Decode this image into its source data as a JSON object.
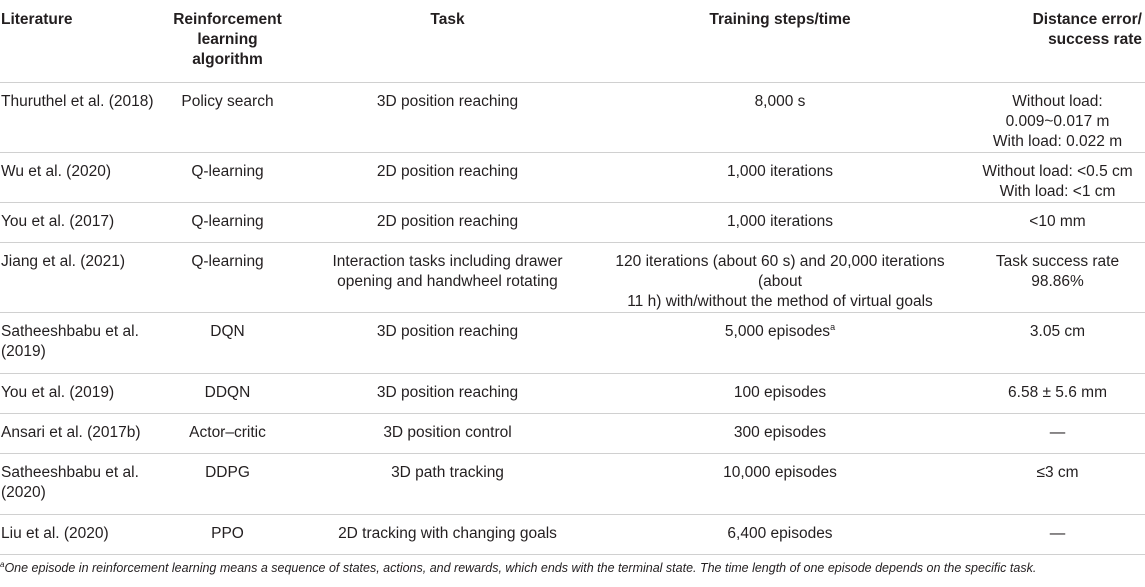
{
  "table": {
    "headers": [
      "Literature",
      "Reinforcement learning algorithm",
      "Task",
      "Training steps/time",
      "Distance error/ success rate"
    ],
    "header_lines": [
      [
        "Literature"
      ],
      [
        "Reinforcement",
        "learning",
        "algorithm"
      ],
      [
        "Task"
      ],
      [
        "Training steps/time"
      ],
      [
        "Distance error/",
        "success rate"
      ]
    ],
    "rows": [
      {
        "literature": [
          "Thuruthel et al. (2018)"
        ],
        "algorithm": "Policy search",
        "task": [
          "3D position reaching"
        ],
        "training": [
          "8,000 s"
        ],
        "training_sup": "",
        "error": [
          "Without load:",
          "0.009~0.017 m",
          "With load: 0.022 m"
        ]
      },
      {
        "literature": [
          "Wu et al. (2020)"
        ],
        "algorithm": "Q-learning",
        "task": [
          "2D position reaching"
        ],
        "training": [
          "1,000 iterations"
        ],
        "training_sup": "",
        "error": [
          "Without load: <0.5 cm",
          "With load: <1 cm"
        ]
      },
      {
        "literature": [
          "You et al. (2017)"
        ],
        "algorithm": "Q-learning",
        "task": [
          "2D position reaching"
        ],
        "training": [
          "1,000 iterations"
        ],
        "training_sup": "",
        "error": [
          "<10 mm"
        ]
      },
      {
        "literature": [
          "Jiang et al. (2021)"
        ],
        "algorithm": "Q-learning",
        "task": [
          "Interaction tasks including drawer",
          "opening and handwheel rotating"
        ],
        "training": [
          "120 iterations (about 60 s) and 20,000 iterations (about",
          "11 h) with/without the method of virtual goals"
        ],
        "training_sup": "",
        "error": [
          "Task success rate",
          "98.86%"
        ]
      },
      {
        "literature": [
          "Satheeshbabu et al.",
          "(2019)"
        ],
        "algorithm": "DQN",
        "task": [
          "3D position reaching"
        ],
        "training": [
          "5,000 episodes"
        ],
        "training_sup": "a",
        "error": [
          "3.05 cm"
        ]
      },
      {
        "literature": [
          "You et al. (2019)"
        ],
        "algorithm": "DDQN",
        "task": [
          "3D position reaching"
        ],
        "training": [
          "100 episodes"
        ],
        "training_sup": "",
        "error": [
          "6.58 ± 5.6 mm"
        ]
      },
      {
        "literature": [
          "Ansari et al. (2017b)"
        ],
        "algorithm": "Actor–critic",
        "task": [
          "3D position control"
        ],
        "training": [
          "300 episodes"
        ],
        "training_sup": "",
        "error": [
          "—"
        ]
      },
      {
        "literature": [
          "Satheeshbabu et al.",
          "(2020)"
        ],
        "algorithm": "DDPG",
        "task": [
          "3D path tracking"
        ],
        "training": [
          "10,000 episodes"
        ],
        "training_sup": "",
        "error": [
          "≤3 cm"
        ]
      },
      {
        "literature": [
          "Liu et al. (2020)"
        ],
        "algorithm": "PPO",
        "task": [
          "2D tracking with changing goals"
        ],
        "training": [
          "6,400 episodes"
        ],
        "training_sup": "",
        "error": [
          "—"
        ]
      }
    ],
    "row_heights": [
      82,
      61,
      40,
      40,
      61,
      61,
      40,
      40,
      61,
      40
    ]
  },
  "footnote": {
    "marker": "a",
    "text": "One episode in reinforcement learning means a sequence of states, actions, and rewards, which ends with the terminal state. The time length of one episode depends on the specific task."
  }
}
